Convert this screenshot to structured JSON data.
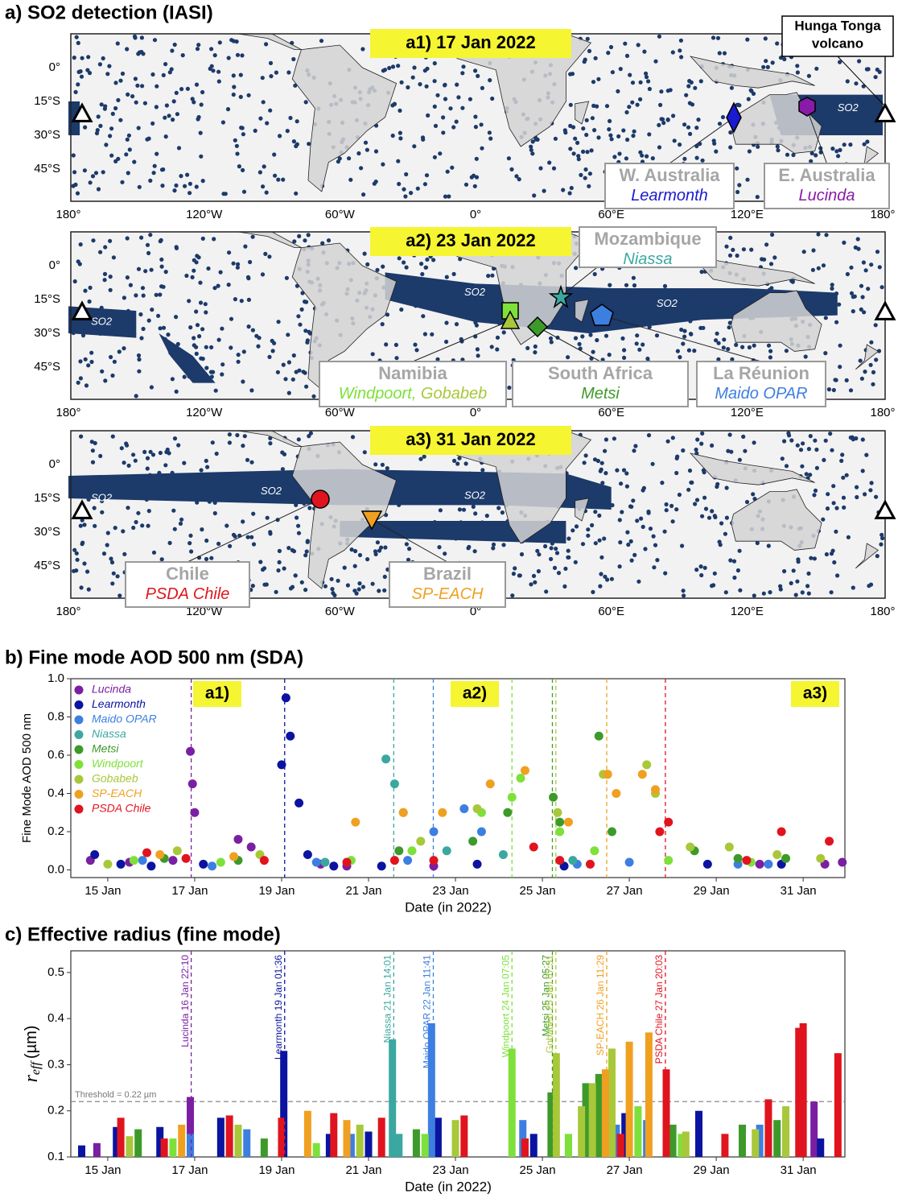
{
  "panel_a": {
    "title": "a) SO2 detection (IASI)",
    "xtick_labels": [
      "180°",
      "120°W",
      "60°W",
      "0°",
      "60°E",
      "120°E",
      "180°"
    ],
    "ytick_labels": [
      "0°",
      "15°S",
      "30°S",
      "45°S"
    ],
    "so2_label": "SO2",
    "maps": [
      {
        "title": "a1) 17 Jan 2022",
        "volcano": [
          "Hunga Tonga",
          "volcano"
        ],
        "annotations": [
          {
            "region": "W. Australia",
            "stations": [
              "Learmonth"
            ]
          },
          {
            "region": "E. Australia",
            "stations": [
              "Lucinda"
            ]
          }
        ]
      },
      {
        "title": "a2) 23 Jan 2022",
        "annotations": [
          {
            "region": "Mozambique",
            "stations": [
              "Niassa"
            ]
          },
          {
            "region": "Namibia",
            "stations": [
              "Windpoort,",
              " Gobabeb"
            ]
          },
          {
            "region": "South Africa",
            "stations": [
              "Metsi"
            ]
          },
          {
            "region": "La Réunion",
            "stations": [
              "Maido OPAR"
            ]
          }
        ]
      },
      {
        "title": "a3) 31 Jan 2022",
        "annotations": [
          {
            "region": "Chile",
            "stations": [
              "PSDA Chile"
            ]
          },
          {
            "region": "Brazil",
            "stations": [
              "SP-EACH"
            ]
          }
        ]
      }
    ]
  },
  "chart_data": [
    {
      "type": "scatter",
      "title": "b) Fine mode AOD 500 nm (SDA)",
      "xlabel": "Date (in 2022)",
      "ylabel": "Fine Mode AOD 500 nm",
      "xlim": [
        14.15,
        31.96
      ],
      "ylim": [
        -0.04,
        1.0
      ],
      "xticks": [
        {
          "value": 15,
          "label": "15 Jan"
        },
        {
          "value": 17,
          "label": "17 Jan"
        },
        {
          "value": 19,
          "label": "19 Jan"
        },
        {
          "value": 21,
          "label": "21 Jan"
        },
        {
          "value": 23,
          "label": "23 Jan"
        },
        {
          "value": 25,
          "label": "25 Jan"
        },
        {
          "value": 27,
          "label": "27 Jan"
        },
        {
          "value": 29,
          "label": "29 Jan"
        },
        {
          "value": 31,
          "label": "31 Jan"
        }
      ],
      "yticks": [
        {
          "value": 0,
          "label": "0.0"
        },
        0.2,
        0.4,
        0.6,
        0.8,
        {
          "value": 1,
          "label": "1.0"
        }
      ],
      "panel_labels": [
        "a1)",
        "a2)",
        "a3)"
      ],
      "legend": "upper left",
      "series": [
        {
          "name": "Lucinda",
          "color": "#7b1fa2",
          "x": [
            14.6,
            15.5,
            16.5,
            16.9,
            16.95,
            17.0,
            18.0,
            18.3,
            19.9,
            20.5,
            22.5,
            30.0,
            31.5,
            31.9
          ],
          "values": [
            0.05,
            0.04,
            0.05,
            0.62,
            0.45,
            0.3,
            0.16,
            0.12,
            0.03,
            0.02,
            0.02,
            0.03,
            0.03,
            0.04
          ]
        },
        {
          "name": "Learmonth",
          "color": "#0a14a0",
          "x": [
            14.7,
            15.3,
            16.0,
            17.2,
            19.0,
            19.1,
            19.2,
            19.4,
            19.6,
            20.2,
            21.3,
            23.5,
            25.5,
            28.8,
            30.5
          ],
          "values": [
            0.08,
            0.03,
            0.02,
            0.03,
            0.55,
            0.9,
            0.7,
            0.35,
            0.08,
            0.02,
            0.02,
            0.03,
            0.02,
            0.03,
            0.03
          ]
        },
        {
          "name": "Maido OPAR",
          "color": "#3d7fe0",
          "x": [
            15.8,
            17.4,
            19.8,
            21.9,
            22.5,
            23.2,
            23.6,
            25.8,
            27.0,
            29.5,
            30.2
          ],
          "values": [
            0.05,
            0.02,
            0.04,
            0.05,
            0.2,
            0.32,
            0.2,
            0.03,
            0.04,
            0.03,
            0.03
          ]
        },
        {
          "name": "Niassa",
          "color": "#3aa8a0",
          "x": [
            20.0,
            21.4,
            21.6,
            21.8,
            22.8,
            24.1,
            25.7
          ],
          "values": [
            0.04,
            0.58,
            0.45,
            0.3,
            0.1,
            0.08,
            0.05
          ]
        },
        {
          "name": "Metsi",
          "color": "#3d9a2a",
          "x": [
            16.3,
            18.0,
            21.7,
            23.4,
            24.2,
            25.25,
            25.4,
            26.3,
            26.5,
            26.6,
            28.5,
            29.5,
            30.6
          ],
          "values": [
            0.06,
            0.05,
            0.1,
            0.15,
            0.3,
            0.38,
            0.25,
            0.7,
            0.5,
            0.2,
            0.1,
            0.06,
            0.06
          ]
        },
        {
          "name": "Windpoort",
          "color": "#7ee03a",
          "x": [
            15.6,
            17.6,
            20.6,
            22.0,
            23.6,
            24.3,
            24.5,
            25.4,
            26.2,
            27.9,
            29.8
          ],
          "values": [
            0.05,
            0.04,
            0.05,
            0.1,
            0.3,
            0.38,
            0.48,
            0.2,
            0.1,
            0.05,
            0.04
          ]
        },
        {
          "name": "Gobabeb",
          "color": "#a8c83a",
          "x": [
            15.0,
            16.6,
            18.5,
            22.2,
            23.5,
            25.35,
            26.4,
            27.4,
            27.6,
            28.4,
            29.3,
            30.4,
            31.4
          ],
          "values": [
            0.03,
            0.1,
            0.08,
            0.15,
            0.32,
            0.3,
            0.5,
            0.55,
            0.4,
            0.12,
            0.12,
            0.08,
            0.06
          ]
        },
        {
          "name": "SP-EACH",
          "color": "#f0a020",
          "x": [
            16.2,
            17.9,
            20.7,
            21.8,
            22.7,
            23.8,
            24.6,
            25.6,
            26.5,
            26.7,
            27.3,
            27.6
          ],
          "values": [
            0.08,
            0.07,
            0.25,
            0.3,
            0.3,
            0.45,
            0.52,
            0.25,
            0.5,
            0.4,
            0.5,
            0.42
          ]
        },
        {
          "name": "PSDA Chile",
          "color": "#e0141e",
          "x": [
            15.9,
            16.8,
            18.6,
            20.5,
            21.6,
            22.5,
            24.8,
            25.4,
            26.1,
            27.7,
            27.9,
            29.7,
            30.5,
            31.6
          ],
          "values": [
            0.09,
            0.06,
            0.05,
            0.04,
            0.05,
            0.05,
            0.12,
            0.05,
            0.03,
            0.2,
            0.25,
            0.05,
            0.2,
            0.15
          ]
        }
      ]
    },
    {
      "type": "bar",
      "title": "c) Effective radius (fine mode)",
      "xlabel": "Date (in 2022)",
      "ylabel": {
        "symbol": "r",
        "subscript": "eff",
        "unit": "(µm)"
      },
      "xlim": [
        14.15,
        31.96
      ],
      "ylim": [
        0.1,
        0.547
      ],
      "xticks": [
        {
          "value": 15,
          "label": "15 Jan"
        },
        {
          "value": 17,
          "label": "17 Jan"
        },
        {
          "value": 19,
          "label": "19 Jan"
        },
        {
          "value": 21,
          "label": "21 Jan"
        },
        {
          "value": 23,
          "label": "23 Jan"
        },
        {
          "value": 25,
          "label": "25 Jan"
        },
        {
          "value": 27,
          "label": "27 Jan"
        },
        {
          "value": 29,
          "label": "29 Jan"
        },
        {
          "value": 31,
          "label": "31 Jan"
        }
      ],
      "yticks": [
        0.1,
        0.2,
        0.3,
        0.4,
        0.5
      ],
      "threshold": {
        "value": 0.22,
        "label": "Threshold = 0.22 µm"
      },
      "events": [
        {
          "x": 16.92,
          "label": "Lucinda 16 Jan 22:10",
          "color": "#7b1fa2"
        },
        {
          "x": 19.07,
          "label": "Learmonth 19 Jan 01:36",
          "color": "#0a14a0"
        },
        {
          "x": 21.58,
          "label": "Niassa 21 Jan 14:01",
          "color": "#3aa8a0"
        },
        {
          "x": 22.49,
          "label": "Maido OPAR 22 Jan 11:41",
          "color": "#3d7fe0"
        },
        {
          "x": 24.3,
          "label": "Windpoort 24 Jan 07:05",
          "color": "#7ee03a"
        },
        {
          "x": 25.23,
          "label": "Metsi 25 Jan 05:27",
          "color": "#3d9a2a"
        },
        {
          "x": 25.31,
          "label": "Gobabeb 25 Jan 07:31",
          "color": "#a8c83a"
        },
        {
          "x": 26.48,
          "label": "SP-EACH 26 Jan 11:29",
          "color": "#f0a020"
        },
        {
          "x": 27.83,
          "label": "PSDA Chile 27 Jan 20:03",
          "color": "#e0141e"
        }
      ],
      "series": [
        {
          "name": "Lucinda",
          "color": "#7b1fa2",
          "x": [
            14.75,
            16.9,
            31.25
          ],
          "values": [
            0.13,
            0.23,
            0.22
          ]
        },
        {
          "name": "Learmonth",
          "color": "#0a14a0",
          "x": [
            14.4,
            15.2,
            16.2,
            17.6,
            19.05,
            20.1,
            21.0,
            22.6,
            24.8,
            26.9,
            28.6,
            30.6,
            31.4
          ],
          "values": [
            0.125,
            0.165,
            0.165,
            0.185,
            0.33,
            0.15,
            0.155,
            0.185,
            0.15,
            0.195,
            0.2,
            0.18,
            0.14
          ]
        },
        {
          "name": "Maido OPAR",
          "color": "#3d7fe0",
          "x": [
            16.9,
            18.2,
            20.6,
            22.45,
            24.55,
            26.7,
            27.4,
            30.0
          ],
          "values": [
            0.15,
            0.16,
            0.15,
            0.39,
            0.18,
            0.17,
            0.18,
            0.17
          ]
        },
        {
          "name": "Niassa",
          "color": "#3aa8a0",
          "x": [
            21.55,
            21.7
          ],
          "values": [
            0.355,
            0.15
          ]
        },
        {
          "name": "Metsi",
          "color": "#3d9a2a",
          "x": [
            15.7,
            18.6,
            22.1,
            25.2,
            26.0,
            26.3,
            28.0,
            29.6,
            30.4
          ],
          "values": [
            0.16,
            0.14,
            0.16,
            0.24,
            0.26,
            0.28,
            0.17,
            0.17,
            0.18
          ]
        },
        {
          "name": "Windpoort",
          "color": "#7ee03a",
          "x": [
            16.5,
            19.8,
            22.3,
            24.3,
            25.6,
            27.2,
            28.2,
            30.2
          ],
          "values": [
            0.14,
            0.13,
            0.15,
            0.335,
            0.15,
            0.21,
            0.15,
            0.2
          ]
        },
        {
          "name": "Gobabeb",
          "color": "#a8c83a",
          "x": [
            15.5,
            18.0,
            20.8,
            23.0,
            25.32,
            25.9,
            26.15,
            26.6,
            28.3,
            29.9,
            30.6
          ],
          "values": [
            0.145,
            0.17,
            0.17,
            0.18,
            0.325,
            0.21,
            0.26,
            0.335,
            0.155,
            0.16,
            0.21
          ]
        },
        {
          "name": "SP-EACH",
          "color": "#f0a020",
          "x": [
            16.7,
            19.6,
            20.5,
            24.6,
            26.45,
            27.0,
            27.45
          ],
          "values": [
            0.17,
            0.2,
            0.18,
            0.14,
            0.29,
            0.35,
            0.37
          ]
        },
        {
          "name": "PSDA Chile",
          "color": "#e0141e",
          "x": [
            15.3,
            16.3,
            17.8,
            19.0,
            20.2,
            21.3,
            23.2,
            24.6,
            26.8,
            27.85,
            29.2,
            30.2,
            30.9,
            31.0,
            31.8
          ],
          "values": [
            0.185,
            0.14,
            0.19,
            0.185,
            0.195,
            0.185,
            0.19,
            0.14,
            0.15,
            0.29,
            0.15,
            0.225,
            0.38,
            0.39,
            0.325
          ]
        }
      ]
    }
  ]
}
